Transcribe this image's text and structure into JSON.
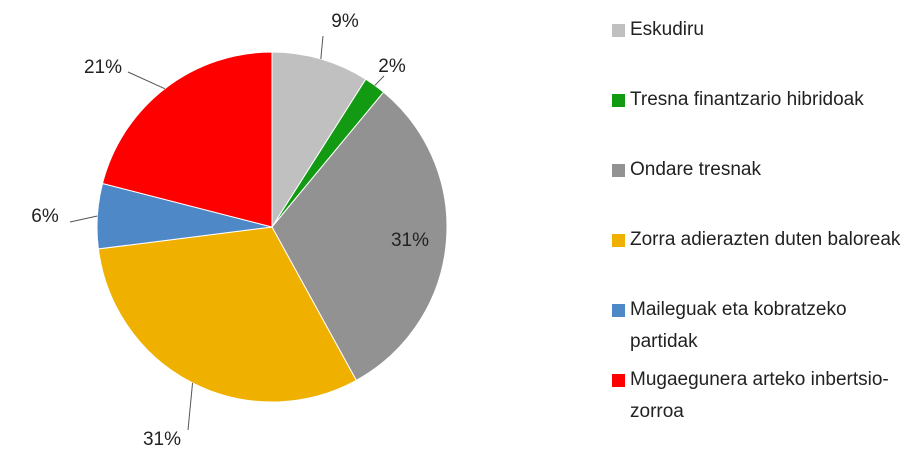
{
  "chart_data": {
    "type": "pie",
    "categories": [
      "Eskudiru",
      "Tresna finantzario hibridoak",
      "Ondare tresnak",
      "Zorra adierazten duten baloreak",
      "Maileguak eta kobratzeko partidak",
      "Mugaegunera arteko inbertsio-zorroa"
    ],
    "values": [
      9,
      2,
      31,
      31,
      6,
      21
    ],
    "value_labels": [
      "9%",
      "2%",
      "31%",
      "31%",
      "6%",
      "21%"
    ],
    "colors": [
      "#c0c0c0",
      "#129a12",
      "#929292",
      "#f0b000",
      "#4f88c6",
      "#ff0000"
    ],
    "legend": "right"
  }
}
